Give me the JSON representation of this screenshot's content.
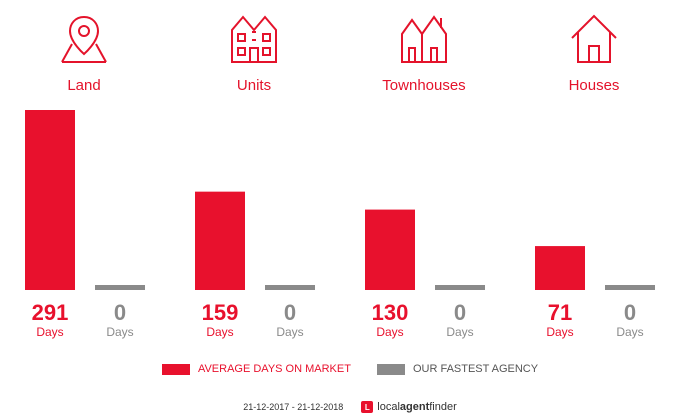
{
  "chart_data": {
    "type": "bar",
    "categories": [
      "Land",
      "Units",
      "Townhouses",
      "Houses"
    ],
    "series": [
      {
        "name": "AVERAGE DAYS ON MARKET",
        "color": "#e8112d",
        "values": [
          291,
          159,
          130,
          71
        ]
      },
      {
        "name": "OUR FASTEST AGENCY",
        "color": "#8a8a8a",
        "values": [
          0,
          0,
          0,
          0
        ]
      }
    ],
    "unit_label": "Days",
    "category_icons": [
      "land-pin-icon",
      "units-building-icon",
      "townhouses-icon",
      "house-icon"
    ]
  },
  "footer": {
    "date_range": "21-12-2017 - 21-12-2018",
    "brand_local": "local",
    "brand_agent": "agent",
    "brand_finder": "finder"
  }
}
